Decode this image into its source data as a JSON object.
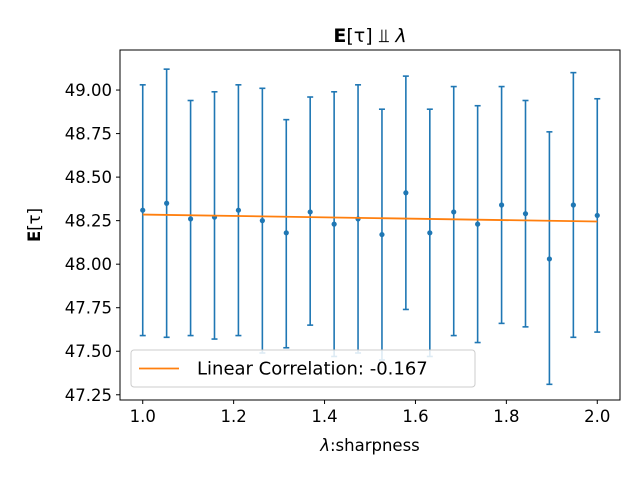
{
  "chart_data": {
    "type": "scatter",
    "title": "E[τ] ⫫ λ",
    "xlabel": "λ:sharpness",
    "ylabel": "E[τ]",
    "xlim": [
      0.95,
      2.05
    ],
    "ylim": [
      47.22,
      49.23
    ],
    "x_ticks": [
      "1.0",
      "1.2",
      "1.4",
      "1.6",
      "1.8",
      "2.0"
    ],
    "y_ticks": [
      "47.25",
      "47.50",
      "47.75",
      "48.00",
      "48.25",
      "48.50",
      "48.75",
      "49.00"
    ],
    "grid": false,
    "legend": {
      "placement": "lower left",
      "entries": [
        "Linear Correlation: -0.167"
      ]
    },
    "colors": {
      "points": "#1f77b4",
      "fit_line": "#ff7f0e"
    },
    "series": [
      {
        "type": "errorbar",
        "x": [
          1.0,
          1.0526,
          1.1053,
          1.1579,
          1.2105,
          1.2632,
          1.3158,
          1.3684,
          1.4211,
          1.4737,
          1.5263,
          1.5789,
          1.6316,
          1.6842,
          1.7368,
          1.7895,
          1.8421,
          1.8947,
          1.9474,
          2.0
        ],
        "y": [
          48.31,
          48.35,
          48.26,
          48.27,
          48.31,
          48.25,
          48.18,
          48.3,
          48.23,
          48.26,
          48.17,
          48.41,
          48.18,
          48.3,
          48.23,
          48.34,
          48.29,
          48.03,
          48.34,
          48.28
        ],
        "y_upper": [
          49.03,
          49.12,
          48.94,
          48.99,
          49.03,
          49.01,
          48.83,
          48.96,
          48.99,
          49.03,
          48.89,
          49.08,
          48.89,
          49.02,
          48.91,
          49.02,
          48.94,
          48.76,
          49.1,
          48.95
        ],
        "y_lower": [
          47.59,
          47.58,
          47.59,
          47.57,
          47.59,
          47.49,
          47.52,
          47.65,
          47.47,
          47.49,
          47.45,
          47.74,
          47.47,
          47.59,
          47.55,
          47.66,
          47.64,
          47.31,
          47.58,
          47.61
        ]
      },
      {
        "name": "Linear Correlation: -0.167",
        "type": "line",
        "x": [
          1.0,
          2.0
        ],
        "y": [
          48.285,
          48.245
        ]
      }
    ]
  }
}
